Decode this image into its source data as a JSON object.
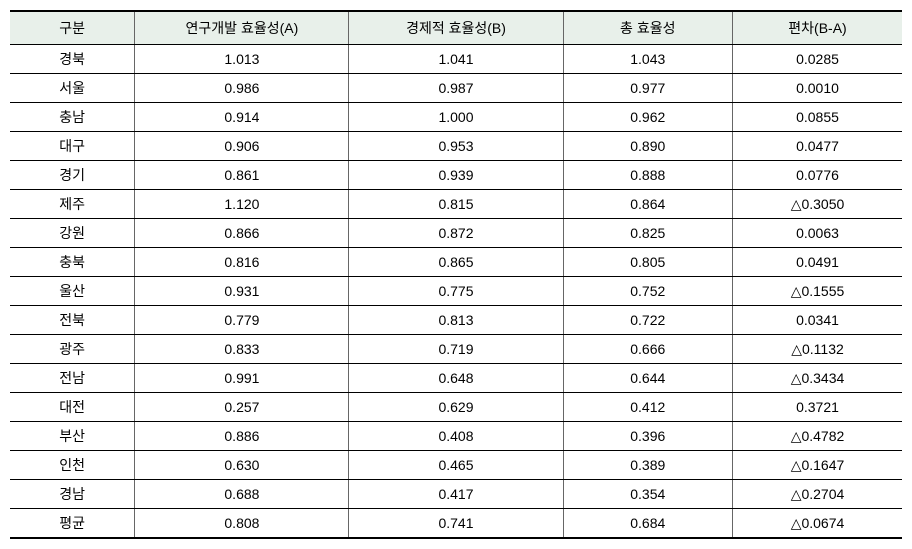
{
  "table": {
    "columns": [
      {
        "label": "구분",
        "class": "col-region"
      },
      {
        "label": "연구개발 효율성(A)",
        "class": "col-a"
      },
      {
        "label": "경제적 효율성(B)",
        "class": "col-b"
      },
      {
        "label": "총 효율성",
        "class": "col-total"
      },
      {
        "label": "편차(B-A)",
        "class": "col-dev"
      }
    ],
    "rows": [
      [
        "경북",
        "1.013",
        "1.041",
        "1.043",
        "0.0285"
      ],
      [
        "서울",
        "0.986",
        "0.987",
        "0.977",
        "0.0010"
      ],
      [
        "충남",
        "0.914",
        "1.000",
        "0.962",
        "0.0855"
      ],
      [
        "대구",
        "0.906",
        "0.953",
        "0.890",
        "0.0477"
      ],
      [
        "경기",
        "0.861",
        "0.939",
        "0.888",
        "0.0776"
      ],
      [
        "제주",
        "1.120",
        "0.815",
        "0.864",
        "△0.3050"
      ],
      [
        "강원",
        "0.866",
        "0.872",
        "0.825",
        "0.0063"
      ],
      [
        "충북",
        "0.816",
        "0.865",
        "0.805",
        "0.0491"
      ],
      [
        "울산",
        "0.931",
        "0.775",
        "0.752",
        "△0.1555"
      ],
      [
        "전북",
        "0.779",
        "0.813",
        "0.722",
        "0.0341"
      ],
      [
        "광주",
        "0.833",
        "0.719",
        "0.666",
        "△0.1132"
      ],
      [
        "전남",
        "0.991",
        "0.648",
        "0.644",
        "△0.3434"
      ],
      [
        "대전",
        "0.257",
        "0.629",
        "0.412",
        "0.3721"
      ],
      [
        "부산",
        "0.886",
        "0.408",
        "0.396",
        "△0.4782"
      ],
      [
        "인천",
        "0.630",
        "0.465",
        "0.389",
        "△0.1647"
      ],
      [
        "경남",
        "0.688",
        "0.417",
        "0.354",
        "△0.2704"
      ],
      [
        "평균",
        "0.808",
        "0.741",
        "0.684",
        "△0.0674"
      ]
    ],
    "header_bg": "#e8f0ea",
    "border_color": "#000000",
    "font_size": 14
  }
}
